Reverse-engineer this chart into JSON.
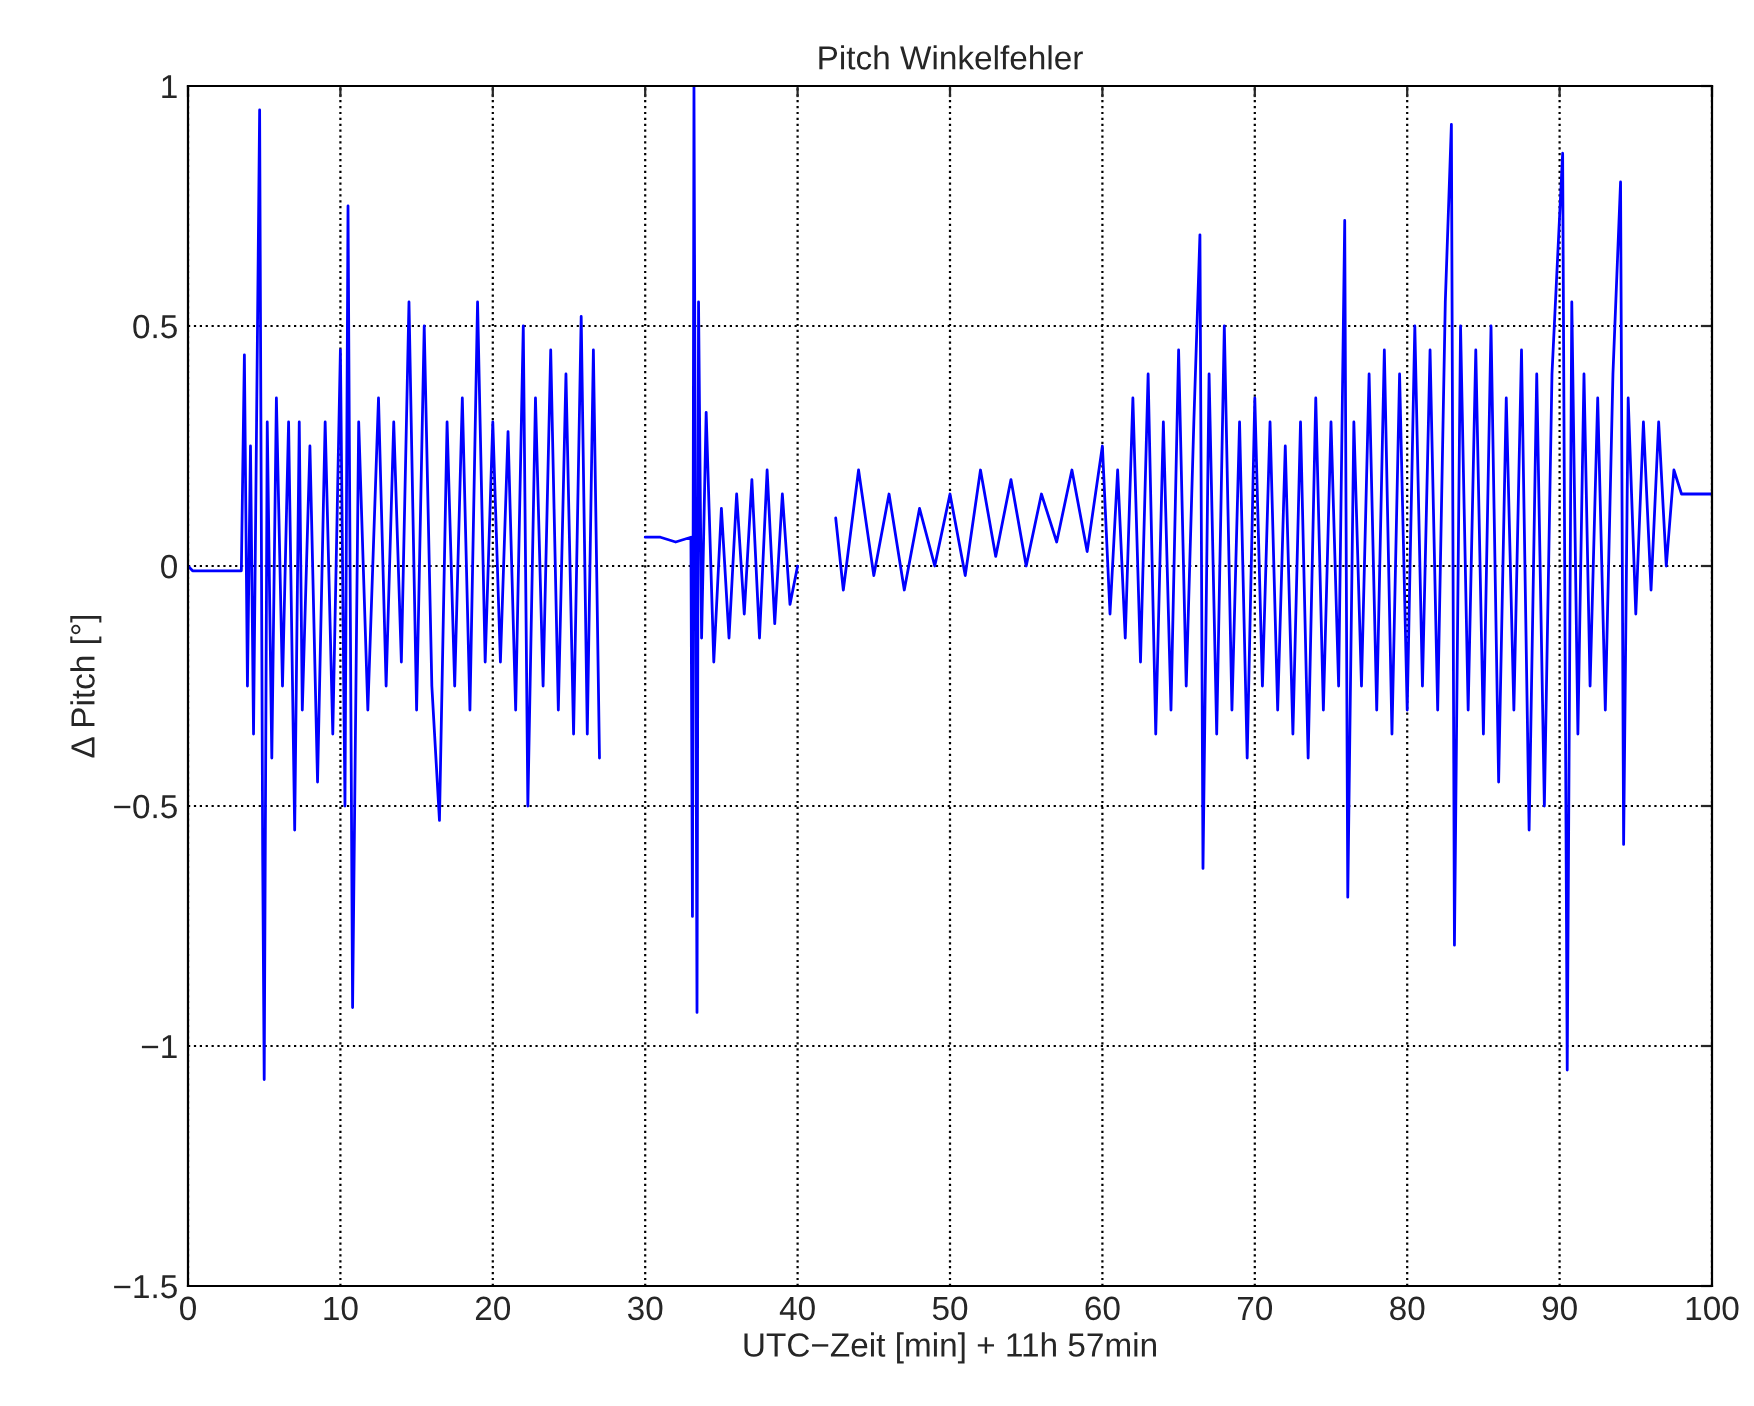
{
  "chart_data": {
    "type": "line",
    "title": "Pitch Winkelfehler",
    "xlabel": "UTC−Zeit [min] + 11h 57min",
    "ylabel": "Δ Pitch [°]",
    "xlim": [
      0,
      100
    ],
    "ylim": [
      -1.5,
      1
    ],
    "xticks": [
      0,
      10,
      20,
      30,
      40,
      50,
      60,
      70,
      80,
      90,
      100
    ],
    "yticks": [
      {
        "value": -1.5,
        "label": "−1.5"
      },
      {
        "value": -1,
        "label": "−1"
      },
      {
        "value": -0.5,
        "label": "−0.5"
      },
      0,
      0.5,
      1
    ],
    "grid": true,
    "marker": "none",
    "line_style": "solid",
    "series": [
      {
        "color": "#0000ff",
        "x": [
          0,
          0.3,
          1,
          2,
          3,
          3.5,
          3.7,
          3.9,
          4.1,
          4.3,
          4.5,
          4.7,
          4.9,
          5.0,
          5.2,
          5.5,
          5.8,
          6.2,
          6.6,
          7.0,
          7.3,
          7.5,
          8.0,
          8.5,
          9.0,
          9.5,
          10.0,
          10.3,
          10.5,
          10.8,
          11.2,
          11.8,
          12.5,
          13.0,
          13.5,
          14.0,
          14.5,
          15.0,
          15.5,
          16.0,
          16.5,
          17.0,
          17.5,
          18.0,
          18.5,
          19.0,
          19.5,
          20.0,
          20.5,
          21.0,
          21.5,
          22.0,
          22.3,
          22.8,
          23.3,
          23.8,
          24.3,
          24.8,
          25.3,
          25.8,
          26.2,
          26.6,
          27.0,
          27.1,
          30.0,
          31.0,
          32.0,
          33.0,
          33.1,
          33.2,
          33.4,
          33.5,
          33.7,
          34.0,
          34.5,
          35.0,
          35.5,
          36.0,
          36.5,
          37.0,
          37.5,
          38.0,
          38.5,
          39.0,
          39.5,
          40.0,
          40.1,
          42.5,
          43.0,
          44.0,
          45.0,
          46.0,
          47.0,
          48.0,
          49.0,
          50.0,
          51.0,
          52.0,
          53.0,
          54.0,
          55.0,
          56.0,
          57.0,
          58.0,
          59.0,
          60.0,
          60.5,
          61.0,
          61.5,
          62.0,
          62.5,
          63.0,
          63.5,
          64.0,
          64.5,
          65.0,
          65.5,
          66.0,
          66.4,
          66.6,
          67.0,
          67.5,
          68.0,
          68.5,
          69.0,
          69.5,
          70.0,
          70.5,
          71.0,
          71.5,
          72.0,
          72.5,
          73.0,
          73.5,
          74.0,
          74.5,
          75.0,
          75.5,
          75.9,
          76.1,
          76.5,
          77.0,
          77.5,
          78.0,
          78.5,
          79.0,
          79.5,
          80.0,
          80.5,
          81.0,
          81.5,
          82.0,
          82.5,
          82.9,
          83.1,
          83.5,
          84.0,
          84.5,
          85.0,
          85.5,
          86.0,
          86.5,
          87.0,
          87.5,
          88.0,
          88.5,
          89.0,
          89.5,
          90.2,
          90.5,
          90.8,
          91.2,
          91.6,
          92.0,
          92.5,
          93.0,
          93.5,
          94.0,
          94.2,
          94.5,
          95.0,
          95.5,
          96.0,
          96.5,
          97.0,
          97.5,
          98.0,
          98.5,
          99.0,
          100
        ],
        "values": [
          0.0,
          -0.01,
          -0.01,
          -0.01,
          -0.01,
          -0.01,
          0.44,
          -0.25,
          0.25,
          -0.35,
          0.3,
          0.95,
          -0.6,
          -1.07,
          0.3,
          -0.4,
          0.35,
          -0.25,
          0.3,
          -0.55,
          0.3,
          -0.3,
          0.25,
          -0.45,
          0.3,
          -0.35,
          0.45,
          -0.5,
          0.75,
          -0.92,
          0.3,
          -0.3,
          0.35,
          -0.25,
          0.3,
          -0.2,
          0.55,
          -0.3,
          0.5,
          -0.25,
          -0.53,
          0.3,
          -0.25,
          0.35,
          -0.3,
          0.55,
          -0.2,
          0.3,
          -0.2,
          0.28,
          -0.3,
          0.5,
          -0.5,
          0.35,
          -0.25,
          0.45,
          -0.3,
          0.4,
          -0.35,
          0.52,
          -0.35,
          0.45,
          -0.4,
          null,
          0.06,
          0.06,
          0.05,
          0.06,
          -0.73,
          1.0,
          -0.93,
          0.55,
          -0.15,
          0.32,
          -0.2,
          0.12,
          -0.15,
          0.15,
          -0.1,
          0.18,
          -0.15,
          0.2,
          -0.12,
          0.15,
          -0.08,
          0.0,
          null,
          0.1,
          -0.05,
          0.2,
          -0.02,
          0.15,
          -0.05,
          0.12,
          0.0,
          0.15,
          -0.02,
          0.2,
          0.02,
          0.18,
          0.0,
          0.15,
          0.05,
          0.2,
          0.03,
          0.25,
          -0.1,
          0.2,
          -0.15,
          0.35,
          -0.2,
          0.4,
          -0.35,
          0.3,
          -0.3,
          0.45,
          -0.25,
          0.3,
          0.69,
          -0.63,
          0.4,
          -0.35,
          0.5,
          -0.3,
          0.3,
          -0.4,
          0.35,
          -0.25,
          0.3,
          -0.3,
          0.25,
          -0.35,
          0.3,
          -0.4,
          0.35,
          -0.3,
          0.3,
          -0.25,
          0.72,
          -0.69,
          0.3,
          -0.25,
          0.4,
          -0.3,
          0.45,
          -0.35,
          0.4,
          -0.3,
          0.5,
          -0.25,
          0.45,
          -0.3,
          0.55,
          0.92,
          -0.79,
          0.5,
          -0.3,
          0.45,
          -0.35,
          0.5,
          -0.45,
          0.35,
          -0.3,
          0.45,
          -0.55,
          0.4,
          -0.5,
          0.4,
          0.86,
          -1.05,
          0.55,
          -0.35,
          0.4,
          -0.25,
          0.35,
          -0.3,
          0.4,
          0.8,
          -0.58,
          0.35,
          -0.1,
          0.3,
          -0.05,
          0.3,
          0.0,
          0.2,
          0.15,
          0.15,
          0.15,
          0.15
        ]
      }
    ]
  }
}
